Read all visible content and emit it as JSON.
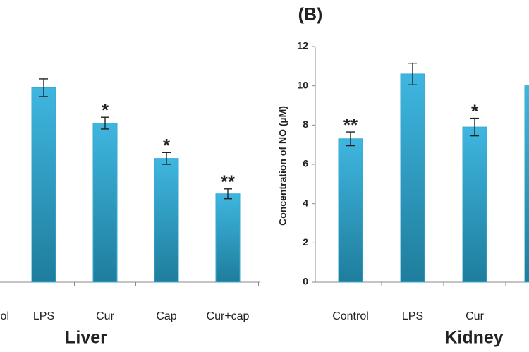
{
  "chart_data": [
    {
      "type": "bar",
      "panel_label": "Liver",
      "categories": [
        "ol",
        "LPS",
        "Cur",
        "Cap",
        "Cur+cap"
      ],
      "values": [
        null,
        9.9,
        8.1,
        6.3,
        4.5
      ],
      "errors": [
        null,
        0.45,
        0.3,
        0.3,
        0.25
      ],
      "annotations": [
        null,
        null,
        "*",
        "*",
        "**"
      ],
      "color": "#35a9d3",
      "ylim": [
        0,
        12
      ]
    },
    {
      "type": "bar",
      "title": "(B)",
      "panel_label": "Kidney",
      "y_label": "Concentration of NO (µM)",
      "categories": [
        "Control",
        "LPS",
        "Cur",
        null
      ],
      "values": [
        7.3,
        10.6,
        7.9,
        10.0
      ],
      "errors": [
        0.35,
        0.55,
        0.45,
        null
      ],
      "annotations": [
        "**",
        null,
        "*",
        null
      ],
      "color": "#35a9d3",
      "ylim": [
        0,
        12
      ],
      "yticks": [
        0,
        2,
        4,
        6,
        8,
        10,
        12
      ]
    }
  ]
}
